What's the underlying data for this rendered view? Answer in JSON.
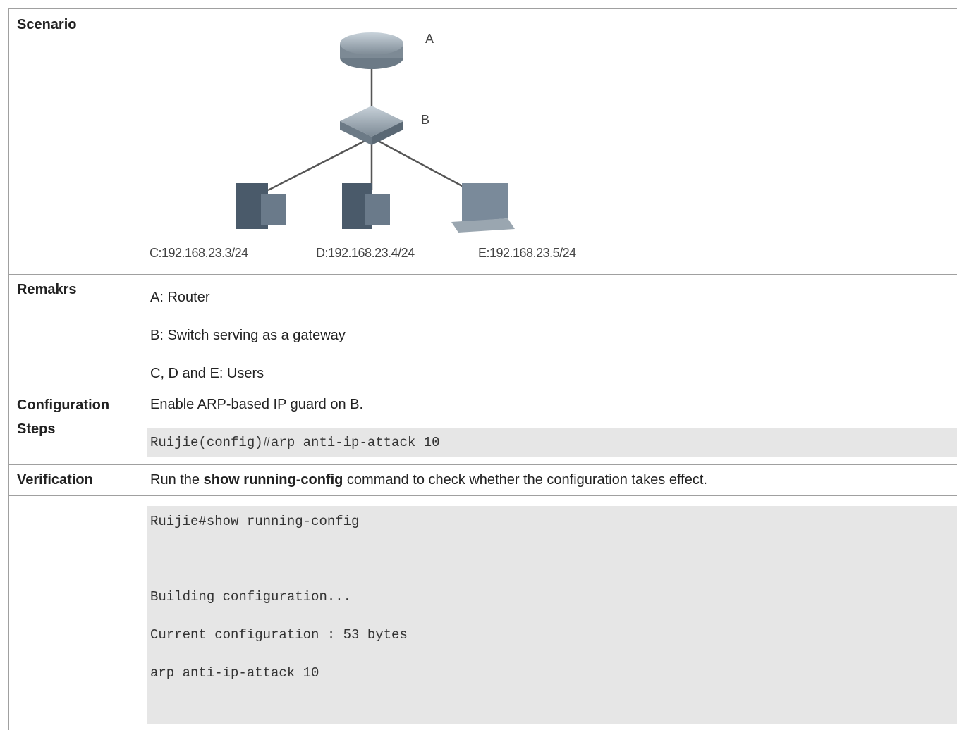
{
  "table": {
    "rows": [
      {
        "label": "Scenario",
        "diagram": {
          "nodes": [
            {
              "label": "A"
            },
            {
              "label": "B"
            },
            {
              "label": "C:192.168.23.3/24"
            },
            {
              "label": "D:192.168.23.4/24"
            },
            {
              "label": "E:192.168.23.5/24"
            }
          ]
        }
      },
      {
        "label": "Remakrs",
        "lines": [
          "A: Router",
          "B: Switch serving as a gateway",
          "C, D and E: Users"
        ]
      },
      {
        "label": "Configuration Steps",
        "text": "Enable ARP-based IP guard on B.",
        "code": [
          "Ruijie(config)#arp anti-ip-attack 10"
        ]
      },
      {
        "label": "Verification",
        "text": {
          "before": "Run the ",
          "bold": "show running-config",
          "after": " command to check whether the configuration takes effect."
        }
      },
      {
        "code": [
          "Ruijie#show running-config",
          "Building configuration...",
          "Current configuration : 53 bytes",
          "arp anti-ip-attack 10"
        ]
      }
    ]
  }
}
